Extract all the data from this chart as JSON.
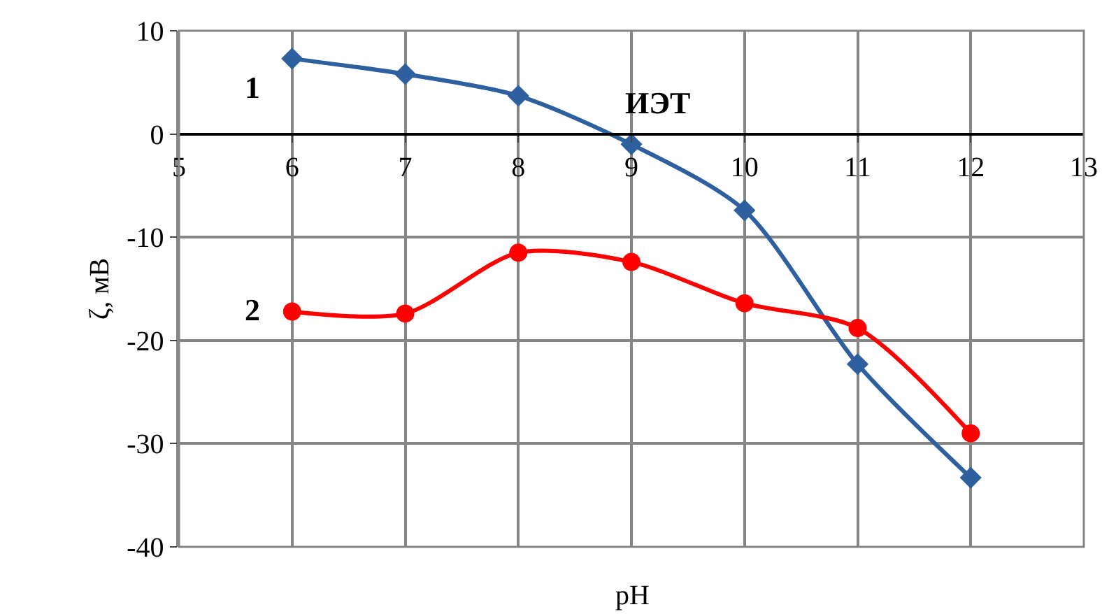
{
  "chart_data": {
    "type": "line",
    "xlabel": "pH",
    "ylabel": "ζ, мВ",
    "x": [
      6,
      7,
      8,
      9,
      10,
      11,
      12
    ],
    "series": [
      {
        "color": "#2e5f9e",
        "marker": "diamond",
        "values": [
          7.3,
          5.8,
          3.7,
          -1.0,
          -7.4,
          -22.3,
          -33.3
        ]
      },
      {
        "color": "#ff0000",
        "marker": "circle",
        "values": [
          -17.2,
          -17.4,
          -11.5,
          -12.4,
          -16.4,
          -18.8,
          -29.0
        ]
      }
    ],
    "xlim": [
      5,
      13
    ],
    "xticks": [
      5,
      6,
      7,
      8,
      9,
      10,
      11,
      12,
      13
    ],
    "ylim": [
      -40,
      10
    ],
    "yticks": [
      -40,
      -30,
      -20,
      -10,
      0,
      10
    ],
    "grid": true,
    "legend": false,
    "annotations": [
      "1",
      "2",
      "ИЭТ"
    ]
  }
}
